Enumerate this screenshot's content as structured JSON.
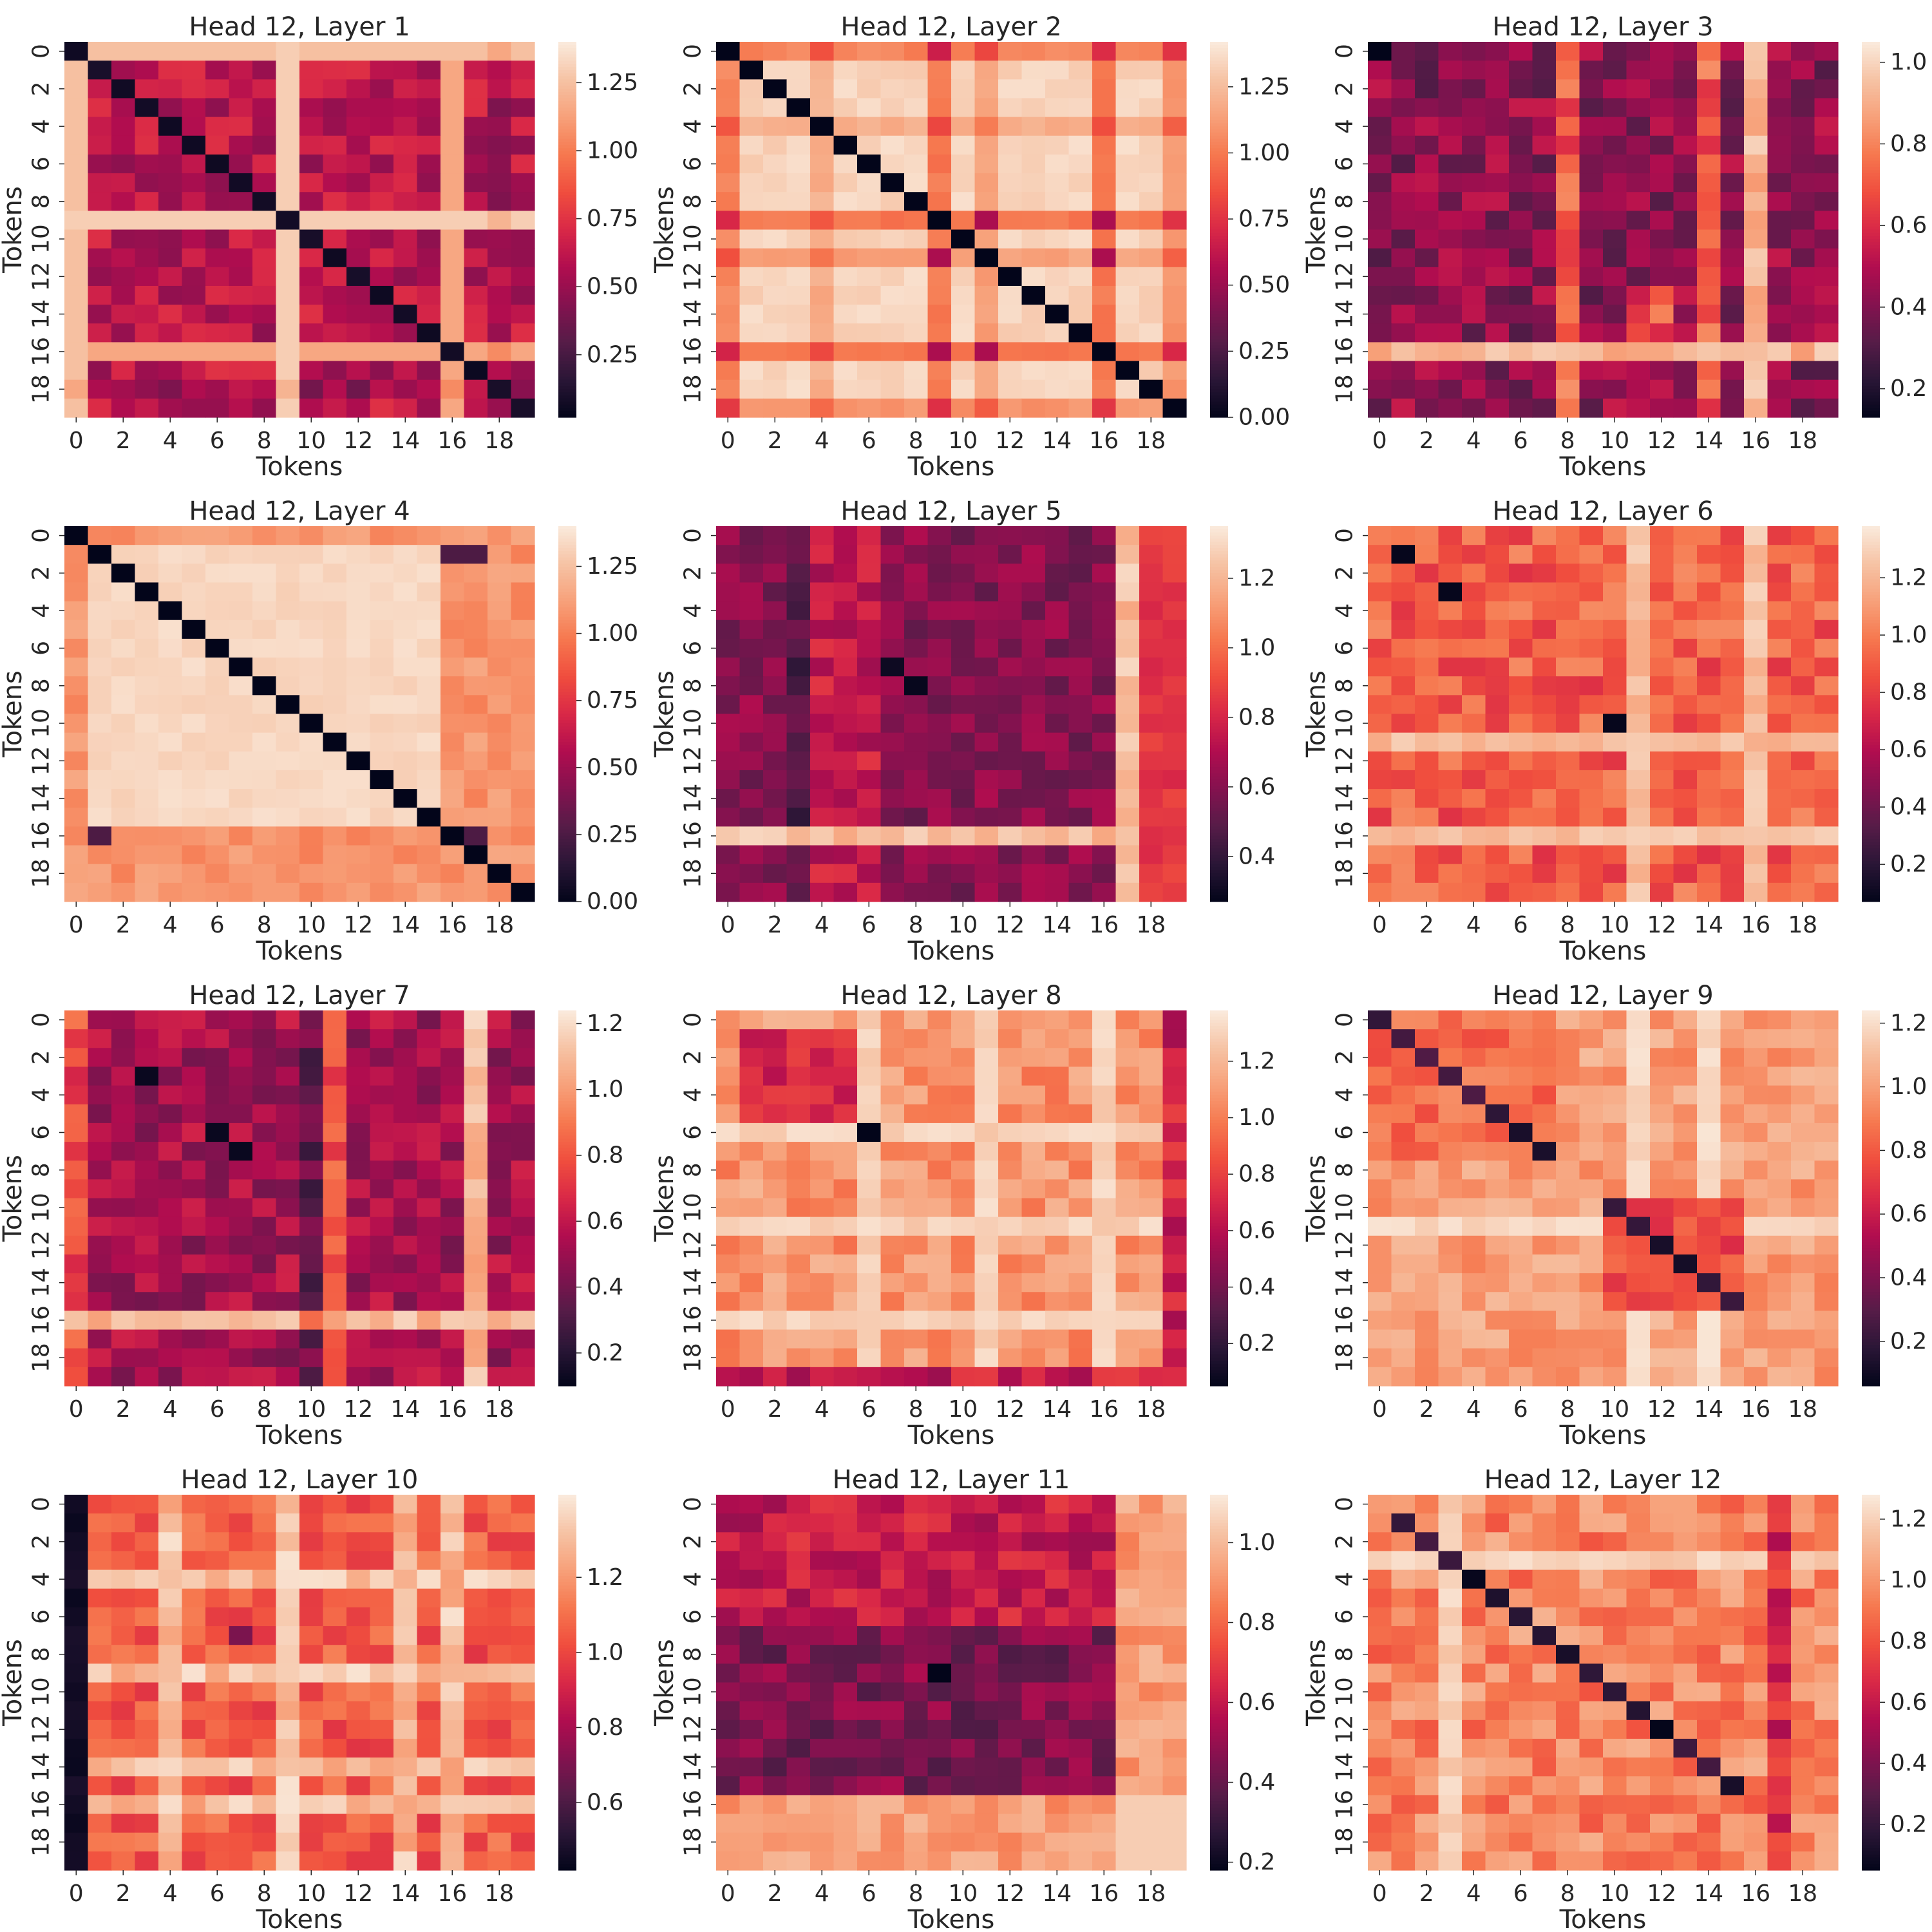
{
  "chart_data": {
    "type": "heatmap",
    "n_tokens": 20,
    "xlabel": "Tokens",
    "ylabel": "Tokens",
    "xticks": [
      "0",
      "2",
      "4",
      "6",
      "8",
      "10",
      "12",
      "14",
      "16",
      "18"
    ],
    "yticks": [
      "0",
      "2",
      "4",
      "6",
      "8",
      "10",
      "12",
      "14",
      "16",
      "18"
    ],
    "tick_positions": [
      0,
      2,
      4,
      6,
      8,
      10,
      12,
      14,
      16,
      18
    ],
    "colormap": {
      "name": "rocket",
      "stops": [
        "#03051a",
        "#2a1636",
        "#561c48",
        "#84124f",
        "#b10d4f",
        "#d92847",
        "#f04e3e",
        "#f6784f",
        "#f7a17a",
        "#f6c3a5",
        "#faebdd"
      ]
    },
    "panels": [
      {
        "title": "Head 12, Layer 1",
        "vmin": 0.02,
        "vmax": 1.4,
        "colorbar_ticks": [
          "0.25",
          "0.50",
          "0.75",
          "1.00",
          "1.25"
        ],
        "colorbar_values": [
          0.25,
          0.5,
          0.75,
          1.0,
          1.25
        ],
        "pattern": "Off-diagonal values 0.3–0.75 with bright bands (~1.1–1.3) at tokens 0, 9 and 16; row 18 darker."
      },
      {
        "title": "Head 12, Layer 2",
        "vmin": 0.0,
        "vmax": 1.42,
        "colorbar_ticks": [
          "0.00",
          "0.25",
          "0.50",
          "0.75",
          "1.00",
          "1.25"
        ],
        "colorbar_values": [
          0.0,
          0.25,
          0.5,
          0.75,
          1.0,
          1.25
        ],
        "pattern": "Zero diagonal, off-diagonal mostly 1.2–1.4 with dimmer bands at tokens 0, 4, 9, 11, 16."
      },
      {
        "title": "Head 12, Layer 3",
        "vmin": 0.13,
        "vmax": 1.05,
        "colorbar_ticks": [
          "0.2",
          "0.4",
          "0.6",
          "0.8",
          "1.0"
        ],
        "colorbar_values": [
          0.2,
          0.4,
          0.6,
          0.8,
          1.0
        ],
        "pattern": "Mostly dark 0.2–0.5 with brighter bands at tokens 8, 14, 16 and row 16."
      },
      {
        "title": "Head 12, Layer 4",
        "vmin": 0.0,
        "vmax": 1.4,
        "colorbar_ticks": [
          "0.00",
          "0.25",
          "0.50",
          "0.75",
          "1.00",
          "1.25"
        ],
        "colorbar_values": [
          0.0,
          0.25,
          0.5,
          0.75,
          1.0,
          1.25
        ],
        "pattern": "Zero diagonal with bright 1.3–1.4 block; edges (tokens 0, 17–19) around 0.9–1.1."
      },
      {
        "title": "Head 12, Layer 5",
        "vmin": 0.27,
        "vmax": 1.35,
        "colorbar_ticks": [
          "0.4",
          "0.6",
          "0.8",
          "1.0",
          "1.2"
        ],
        "colorbar_values": [
          0.4,
          0.6,
          0.8,
          1.0,
          1.2
        ],
        "pattern": "Dark center 0.35–0.6 with bright band at token 17 and row 16."
      },
      {
        "title": "Head 12, Layer 6",
        "vmin": 0.07,
        "vmax": 1.38,
        "colorbar_ticks": [
          "0.2",
          "0.4",
          "0.6",
          "0.8",
          "1.0",
          "1.2"
        ],
        "colorbar_values": [
          0.2,
          0.4,
          0.6,
          0.8,
          1.0,
          1.2
        ],
        "pattern": "Plaid of values 0.6–1.3 with bright bands at tokens 11 and 16; dark spots at (1,1), (3,3), (10,10)."
      },
      {
        "title": "Head 12, Layer 7",
        "vmin": 0.1,
        "vmax": 1.24,
        "colorbar_ticks": [
          "0.2",
          "0.4",
          "0.6",
          "0.8",
          "1.0",
          "1.2"
        ],
        "colorbar_values": [
          0.2,
          0.4,
          0.6,
          0.8,
          1.0,
          1.2
        ],
        "pattern": "Mostly 0.3–0.6 with bright band at token 17 and row 16; dark column 10."
      },
      {
        "title": "Head 12, Layer 8",
        "vmin": 0.05,
        "vmax": 1.38,
        "colorbar_ticks": [
          "0.2",
          "0.4",
          "0.6",
          "0.8",
          "1.0",
          "1.2"
        ],
        "colorbar_values": [
          0.2,
          0.4,
          0.6,
          0.8,
          1.0,
          1.2
        ],
        "pattern": "Mostly 0.9–1.3 with bright bands at tokens 6, 11, 16; dim block near tokens 1–5 and dark spot at (6,6)."
      },
      {
        "title": "Head 12, Layer 9",
        "vmin": 0.06,
        "vmax": 1.24,
        "colorbar_ticks": [
          "0.2",
          "0.4",
          "0.6",
          "0.8",
          "1.0",
          "1.2"
        ],
        "colorbar_values": [
          0.2,
          0.4,
          0.6,
          0.8,
          1.0,
          1.2
        ],
        "pattern": "Block-structured with low diagonal in blocks 0–7 and 10–15; bright bands at tokens 11 and 14."
      },
      {
        "title": "Head 12, Layer 10",
        "vmin": 0.42,
        "vmax": 1.42,
        "colorbar_ticks": [
          "0.6",
          "0.8",
          "1.0",
          "1.2"
        ],
        "colorbar_values": [
          0.6,
          0.8,
          1.0,
          1.2
        ],
        "pattern": "Column 0 darkest (~0.45); plaid of 0.9–1.4 with bright stripes at tokens 4, 9, 14, 16."
      },
      {
        "title": "Head 12, Layer 11",
        "vmin": 0.18,
        "vmax": 1.12,
        "colorbar_ticks": [
          "0.2",
          "0.4",
          "0.6",
          "0.8",
          "1.0"
        ],
        "colorbar_values": [
          0.2,
          0.4,
          0.6,
          0.8,
          1.0
        ],
        "pattern": "Dark center 0.25–0.5 with bright bands at tokens 17–19 and rows 16–19."
      },
      {
        "title": "Head 12, Layer 12",
        "vmin": 0.05,
        "vmax": 1.28,
        "colorbar_ticks": [
          "0.2",
          "0.4",
          "0.6",
          "0.8",
          "1.0",
          "1.2"
        ],
        "colorbar_values": [
          0.2,
          0.4,
          0.6,
          0.8,
          1.0,
          1.2
        ],
        "pattern": "Low diagonal with bright band at token 3; values 0.7–1.2 elsewhere."
      }
    ]
  }
}
